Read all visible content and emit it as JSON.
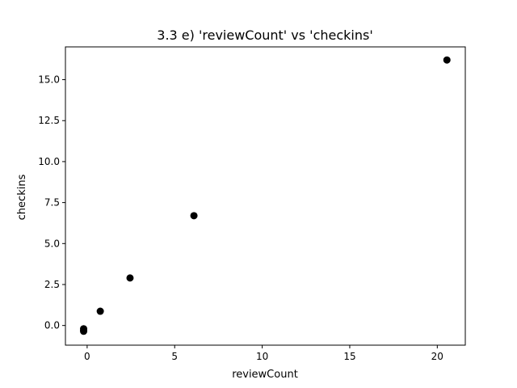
{
  "chart_data": {
    "type": "scatter",
    "title": "3.3 e) 'reviewCount' vs 'checkins'",
    "xlabel": "reviewCount",
    "ylabel": "checkins",
    "xlim": [
      -1.24,
      21.6
    ],
    "ylim": [
      -1.2,
      17.0
    ],
    "xticks": [
      0,
      5,
      10,
      15,
      20
    ],
    "xtick_labels": [
      "0",
      "5",
      "10",
      "15",
      "20"
    ],
    "yticks": [
      0.0,
      2.5,
      5.0,
      7.5,
      10.0,
      12.5,
      15.0
    ],
    "ytick_labels": [
      "0.0",
      "2.5",
      "5.0",
      "7.5",
      "10.0",
      "12.5",
      "15.0"
    ],
    "grid": false,
    "marker_color": "#000000",
    "points": [
      {
        "x": -0.2,
        "y": -0.2
      },
      {
        "x": -0.2,
        "y": -0.3
      },
      {
        "x": -0.2,
        "y": -0.35
      },
      {
        "x": 0.75,
        "y": 0.87
      },
      {
        "x": 2.45,
        "y": 2.9
      },
      {
        "x": 6.1,
        "y": 6.7
      },
      {
        "x": 20.55,
        "y": 16.2
      }
    ]
  }
}
